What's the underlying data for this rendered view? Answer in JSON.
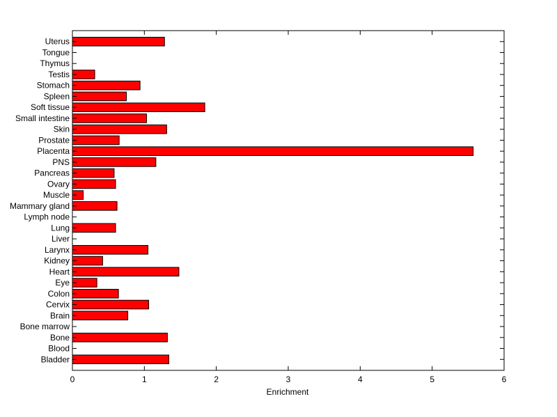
{
  "chart_data": {
    "type": "bar",
    "orientation": "horizontal",
    "title": "",
    "xlabel": "Enrichment",
    "ylabel": "",
    "xlim": [
      0,
      6
    ],
    "x_ticks": [
      "0",
      "1",
      "2",
      "3",
      "4",
      "5",
      "6"
    ],
    "grid": false,
    "legend": "none",
    "bar_color": "#ff0000",
    "edge_color": "#000000",
    "categories": [
      "Bladder",
      "Blood",
      "Bone",
      "Bone marrow",
      "Brain",
      "Cervix",
      "Colon",
      "Eye",
      "Heart",
      "Kidney",
      "Larynx",
      "Liver",
      "Lung",
      "Lymph node",
      "Mammary gland",
      "Muscle",
      "Ovary",
      "Pancreas",
      "PNS",
      "Placenta",
      "Prostate",
      "Skin",
      "Small intestine",
      "Soft tissue",
      "Spleen",
      "Stomach",
      "Testis",
      "Thymus",
      "Tongue",
      "Uterus"
    ],
    "values": [
      1.34,
      0,
      1.32,
      0,
      0.77,
      1.06,
      0.64,
      0.34,
      1.48,
      0.42,
      1.05,
      0,
      0.6,
      0,
      0.62,
      0.15,
      0.6,
      0.58,
      1.16,
      5.57,
      0.65,
      1.31,
      1.03,
      1.84,
      0.75,
      0.94,
      0.31,
      0,
      0,
      1.28
    ]
  }
}
